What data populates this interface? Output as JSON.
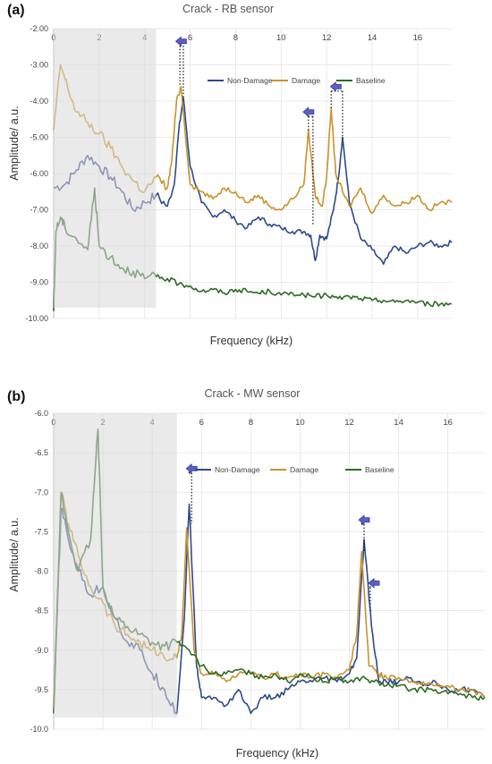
{
  "chart_data": [
    {
      "panel": "(a)",
      "type": "line",
      "title": "Crack - RB sensor",
      "xlabel": "Frequency (kHz)",
      "ylabel": "Amplitude/ a.u.",
      "xlim": [
        0,
        17.5
      ],
      "ylim": [
        -10.0,
        -2.0
      ],
      "xticks": [
        0,
        2,
        4,
        6,
        8,
        10,
        12,
        14,
        16
      ],
      "yticks": [
        -2.0,
        -3.0,
        -4.0,
        -5.0,
        -6.0,
        -7.0,
        -8.0,
        -9.0,
        -10.0
      ],
      "ytick_labels": [
        "-2.00",
        "-3.00",
        "-4.00",
        "-5.00",
        "-6.00",
        "-7.00",
        "-8.00",
        "-9.00",
        "-10.00"
      ],
      "grid": true,
      "legend_position": "top-right",
      "shaded_region_x": [
        0,
        4.5
      ],
      "series": [
        {
          "name": "Non-Damage",
          "color": "#2e4a8c",
          "x": [
            0,
            0.5,
            1.0,
            1.5,
            2.0,
            2.5,
            3.0,
            3.5,
            4.0,
            4.5,
            5.0,
            5.3,
            5.5,
            5.7,
            6.0,
            6.5,
            7.0,
            7.5,
            8.0,
            8.5,
            9.0,
            9.5,
            10.0,
            10.5,
            11.0,
            11.3,
            11.5,
            11.7,
            12.0,
            12.3,
            12.5,
            12.7,
            13.0,
            13.5,
            14.0,
            14.5,
            15.0,
            15.5,
            16.0,
            16.5,
            17.0,
            17.5
          ],
          "y": [
            -6.4,
            -6.3,
            -5.9,
            -5.5,
            -5.8,
            -6.1,
            -6.5,
            -7.0,
            -6.8,
            -6.6,
            -6.9,
            -6.3,
            -4.8,
            -3.9,
            -5.8,
            -6.8,
            -7.2,
            -7.0,
            -7.3,
            -7.5,
            -7.2,
            -7.4,
            -7.5,
            -7.6,
            -7.6,
            -7.7,
            -8.4,
            -7.7,
            -7.8,
            -7.0,
            -6.2,
            -5.0,
            -6.8,
            -7.8,
            -8.1,
            -8.5,
            -8.0,
            -8.2,
            -8.0,
            -7.9,
            -8.0,
            -7.9
          ]
        },
        {
          "name": "Damage",
          "color": "#c9922e",
          "x": [
            0,
            0.3,
            0.6,
            1.0,
            1.5,
            2.0,
            2.5,
            3.0,
            3.5,
            4.0,
            4.5,
            5.0,
            5.2,
            5.4,
            5.6,
            6.0,
            6.5,
            7.0,
            7.5,
            8.0,
            8.5,
            9.0,
            9.5,
            10.0,
            10.5,
            11.0,
            11.2,
            11.5,
            11.8,
            12.0,
            12.2,
            12.4,
            12.7,
            13.0,
            13.5,
            14.0,
            14.5,
            15.0,
            15.5,
            16.0,
            16.5,
            17.0,
            17.5
          ],
          "y": [
            -4.8,
            -3.0,
            -3.6,
            -4.3,
            -4.6,
            -4.9,
            -5.3,
            -5.8,
            -6.2,
            -6.5,
            -6.1,
            -6.4,
            -5.6,
            -4.0,
            -3.6,
            -6.3,
            -6.5,
            -6.7,
            -6.4,
            -6.5,
            -6.8,
            -6.6,
            -6.9,
            -7.0,
            -6.7,
            -6.3,
            -4.8,
            -6.6,
            -6.9,
            -6.1,
            -4.2,
            -6.0,
            -6.5,
            -6.9,
            -6.4,
            -7.1,
            -6.6,
            -6.9,
            -6.8,
            -6.6,
            -7.0,
            -6.8,
            -6.8
          ]
        },
        {
          "name": "Baseline",
          "color": "#2f6b26",
          "x": [
            0,
            0.1,
            0.3,
            0.5,
            1.0,
            1.5,
            1.8,
            2.0,
            2.5,
            3.0,
            3.5,
            4.0,
            4.5,
            5.0,
            5.5,
            6.0,
            6.5,
            7.0,
            7.5,
            8.0,
            8.5,
            9.0,
            9.5,
            10.0,
            10.5,
            11.0,
            11.5,
            12.0,
            12.5,
            13.0,
            13.5,
            14.0,
            14.5,
            15.0,
            15.5,
            16.0,
            16.5,
            17.0,
            17.5
          ],
          "y": [
            -9.8,
            -7.6,
            -7.2,
            -7.5,
            -7.8,
            -8.1,
            -6.4,
            -8.0,
            -8.3,
            -8.6,
            -8.7,
            -8.9,
            -8.85,
            -8.9,
            -9.05,
            -9.1,
            -9.25,
            -9.2,
            -9.3,
            -9.2,
            -9.25,
            -9.3,
            -9.25,
            -9.35,
            -9.3,
            -9.35,
            -9.4,
            -9.35,
            -9.45,
            -9.4,
            -9.45,
            -9.5,
            -9.5,
            -9.55,
            -9.5,
            -9.55,
            -9.6,
            -9.6,
            -9.6
          ]
        }
      ],
      "annotations": [
        {
          "arrow": "left",
          "dotted_from": [
            5.55,
            -3.6
          ],
          "dotted_to": [
            5.7,
            -4.0
          ],
          "label_x": 5.6,
          "label_y": -2.35
        },
        {
          "arrow": "left",
          "dotted_from": [
            11.2,
            -4.85
          ],
          "dotted_to": [
            11.4,
            -7.4
          ],
          "label_x": 11.2,
          "label_y": -4.3
        },
        {
          "arrow": "left",
          "dotted_from": [
            12.2,
            -4.2
          ],
          "dotted_to": [
            12.7,
            -5.1
          ],
          "label_x": 12.4,
          "label_y": -3.6
        }
      ]
    },
    {
      "panel": "(b)",
      "type": "line",
      "title": "Crack - MW sensor",
      "xlabel": "Frequency (kHz)",
      "ylabel": "Amplitude/ a.u.",
      "xlim": [
        0,
        17.5
      ],
      "ylim": [
        -10.0,
        -6.0
      ],
      "xticks": [
        0,
        2,
        4,
        6,
        8,
        10,
        12,
        14,
        16
      ],
      "yticks": [
        -6.0,
        -6.5,
        -7.0,
        -7.5,
        -8.0,
        -8.5,
        -9.0,
        -9.5,
        -10.0
      ],
      "ytick_labels": [
        "-6.0",
        "-6.5",
        "-7.0",
        "-7.5",
        "-8.0",
        "-8.5",
        "-9.0",
        "-9.5",
        "-10.0"
      ],
      "grid": true,
      "legend_position": "top-right",
      "shaded_region_x": [
        0,
        5.0
      ],
      "series": [
        {
          "name": "Non-Damage",
          "color": "#2e4a8c",
          "x": [
            0,
            0.3,
            0.6,
            1.0,
            1.5,
            2.0,
            2.5,
            3.0,
            3.5,
            4.0,
            4.5,
            5.0,
            5.3,
            5.5,
            5.8,
            6.0,
            6.5,
            7.0,
            7.5,
            8.0,
            8.5,
            9.0,
            9.5,
            10.0,
            10.5,
            11.0,
            11.5,
            12.0,
            12.3,
            12.6,
            12.9,
            13.2,
            13.5,
            14.0,
            14.5,
            15.0,
            15.5,
            16.0,
            16.5,
            17.0,
            17.5
          ],
          "y": [
            -9.8,
            -7.2,
            -7.6,
            -8.0,
            -8.3,
            -8.2,
            -8.6,
            -8.9,
            -9.0,
            -9.3,
            -9.5,
            -9.8,
            -8.6,
            -7.15,
            -9.2,
            -9.6,
            -9.6,
            -9.7,
            -9.5,
            -9.8,
            -9.6,
            -9.6,
            -9.5,
            -9.4,
            -9.4,
            -9.35,
            -9.4,
            -9.3,
            -9.1,
            -7.6,
            -8.7,
            -9.4,
            -9.4,
            -9.4,
            -9.35,
            -9.45,
            -9.4,
            -9.5,
            -9.5,
            -9.5,
            -9.6
          ]
        },
        {
          "name": "Damage",
          "color": "#c9922e",
          "x": [
            0,
            0.3,
            0.6,
            1.0,
            1.5,
            2.0,
            2.5,
            3.0,
            3.5,
            4.0,
            4.5,
            5.0,
            5.2,
            5.4,
            5.7,
            6.0,
            6.5,
            7.0,
            7.5,
            8.0,
            8.5,
            9.0,
            9.5,
            10.0,
            10.5,
            11.0,
            11.5,
            12.0,
            12.3,
            12.5,
            12.8,
            13.2,
            13.5,
            14.0,
            14.5,
            15.0,
            15.5,
            16.0,
            16.5,
            17.0,
            17.5
          ],
          "y": [
            -9.8,
            -7.0,
            -7.4,
            -7.8,
            -8.2,
            -8.4,
            -8.7,
            -8.8,
            -8.9,
            -9.0,
            -9.1,
            -9.1,
            -8.8,
            -7.45,
            -9.0,
            -9.3,
            -9.3,
            -9.4,
            -9.3,
            -9.3,
            -9.35,
            -9.3,
            -9.35,
            -9.3,
            -9.35,
            -9.3,
            -9.35,
            -9.25,
            -8.8,
            -7.75,
            -9.2,
            -9.3,
            -9.35,
            -9.35,
            -9.4,
            -9.4,
            -9.45,
            -9.45,
            -9.5,
            -9.5,
            -9.6
          ]
        },
        {
          "name": "Baseline",
          "color": "#2f6b26",
          "x": [
            0,
            0.3,
            0.6,
            1.0,
            1.5,
            1.8,
            2.0,
            2.5,
            3.0,
            3.5,
            4.0,
            4.5,
            5.0,
            5.5,
            6.0,
            6.5,
            7.0,
            7.5,
            8.0,
            8.5,
            9.0,
            9.5,
            10.0,
            10.5,
            11.0,
            11.5,
            12.0,
            12.5,
            13.0,
            13.5,
            14.0,
            14.5,
            15.0,
            15.5,
            16.0,
            16.5,
            17.0,
            17.5
          ],
          "y": [
            -9.8,
            -7.0,
            -7.5,
            -8.0,
            -7.6,
            -6.2,
            -8.2,
            -8.6,
            -8.7,
            -8.8,
            -8.9,
            -8.95,
            -8.9,
            -9.0,
            -9.2,
            -9.3,
            -9.3,
            -9.25,
            -9.3,
            -9.35,
            -9.3,
            -9.4,
            -9.3,
            -9.35,
            -9.4,
            -9.35,
            -9.4,
            -9.35,
            -9.4,
            -9.45,
            -9.45,
            -9.5,
            -9.5,
            -9.5,
            -9.55,
            -9.55,
            -9.6,
            -9.6
          ]
        }
      ],
      "annotations": [
        {
          "arrow": "left",
          "dotted_from": [
            5.5,
            -6.7
          ],
          "dotted_to": [
            5.6,
            -7.4
          ],
          "label_x": 5.6,
          "label_y": -6.7
        },
        {
          "arrow": "left",
          "dotted_from": [
            12.5,
            -7.35
          ],
          "dotted_to": [
            12.6,
            -7.75
          ],
          "label_x": 12.6,
          "label_y": -7.35
        },
        {
          "arrow": "left",
          "dotted_from": [
            12.85,
            -8.15
          ],
          "dotted_to": [
            12.85,
            -8.5
          ],
          "label_x": 13.0,
          "label_y": -8.15
        }
      ]
    }
  ]
}
